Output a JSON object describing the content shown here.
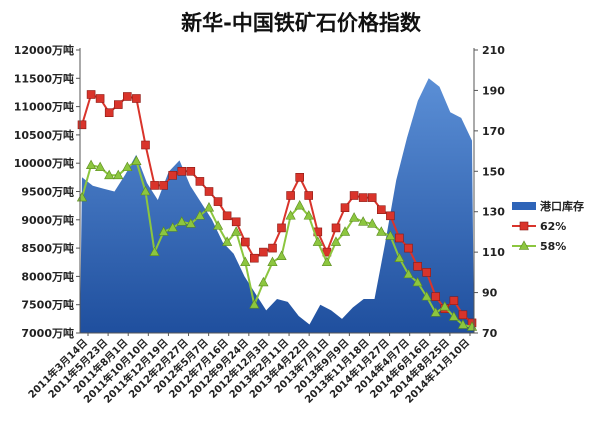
{
  "chart_data": {
    "type": "line",
    "title": "新华-中国铁矿石价格指数",
    "legend_position": "right",
    "grid": false,
    "y_left": {
      "range": [
        7000,
        12000
      ],
      "ticks": [
        "12000万吨",
        "11500万吨",
        "11000万吨",
        "10500万吨",
        "10000万吨",
        "9500万吨",
        "9000万吨",
        "8500万吨",
        "8000万吨",
        "7500万吨",
        "7000万吨"
      ]
    },
    "y_right": {
      "range": [
        70,
        210
      ],
      "ticks": [
        "210",
        "190",
        "170",
        "150",
        "130",
        "110",
        "90",
        "70"
      ]
    },
    "x_ticks": [
      "2011年3月14日",
      "2011年5月23日",
      "2011年8月1日",
      "2011年10月10日",
      "2011年12月19日",
      "2012年2月27日",
      "2012年5月7日",
      "2012年7月16日",
      "2012年9月24日",
      "2012年12月3日",
      "2013年2月11日",
      "2013年4月22日",
      "2013年7月1日",
      "2013年9月9日",
      "2013年11月18日",
      "2014年1月27日",
      "2014年4月7日",
      "2014年6月16日",
      "2014年8月25日",
      "2014年11月10日"
    ],
    "series": [
      {
        "name": "港口库存",
        "axis": "left",
        "kind": "area",
        "color": "#2e64b8",
        "values": [
          9750,
          9600,
          9550,
          9500,
          9800,
          10150,
          9650,
          9350,
          9850,
          10050,
          9600,
          9300,
          9000,
          8600,
          8400,
          8000,
          7700,
          7400,
          7600,
          7550,
          7300,
          7150,
          7500,
          7400,
          7250,
          7450,
          7600,
          7600,
          8600,
          9700,
          10450,
          11100,
          11500,
          11350,
          10900,
          10800,
          10400
        ]
      },
      {
        "name": "62%",
        "axis": "right",
        "kind": "line",
        "marker": "square",
        "color": "#d9342b",
        "values": [
          173,
          188,
          186,
          179,
          183,
          187,
          186,
          163,
          143,
          143,
          148,
          150,
          150,
          145,
          140,
          135,
          128,
          125,
          115,
          107,
          110,
          112,
          122,
          138,
          147,
          138,
          120,
          110,
          122,
          132,
          138,
          137,
          137,
          131,
          128,
          117,
          112,
          103,
          100,
          88,
          82,
          86,
          79,
          75
        ]
      },
      {
        "name": "58%",
        "axis": "right",
        "kind": "line",
        "marker": "triangle",
        "color": "#8cc63f",
        "values": [
          137,
          153,
          152,
          148,
          148,
          152,
          155,
          140,
          110,
          120,
          122,
          125,
          124,
          128,
          132,
          123,
          115,
          120,
          105,
          84,
          95,
          105,
          108,
          128,
          133,
          128,
          115,
          105,
          115,
          120,
          127,
          125,
          124,
          120,
          118,
          107,
          99,
          95,
          88,
          80,
          83,
          78,
          74,
          73
        ]
      }
    ]
  }
}
